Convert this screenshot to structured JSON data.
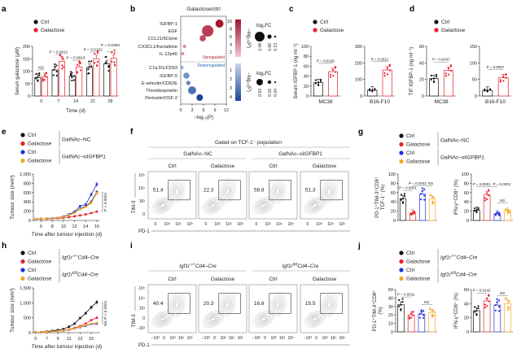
{
  "panel_labels": [
    "a",
    "b",
    "c",
    "d",
    "e",
    "f",
    "g",
    "h",
    "i",
    "j"
  ],
  "legends": {
    "two": {
      "entries": [
        {
          "label": "Ctrl",
          "color": "#111111"
        },
        {
          "label": "Galactose",
          "color": "#e8202a"
        }
      ]
    },
    "galnac": {
      "entries": [
        {
          "label": "Ctrl",
          "color": "#111111"
        },
        {
          "label": "Galactose",
          "color": "#e8202a"
        },
        {
          "label": "Ctrl",
          "color": "#1f2fe0"
        },
        {
          "label": "Galactose",
          "color": "#f5a623"
        }
      ],
      "groups": [
        {
          "text": "GalNAc–NC"
        },
        {
          "text": "GalNAc–siIGFBP1"
        }
      ]
    },
    "igf1r": {
      "entries": [
        {
          "label": "Ctrl",
          "color": "#111111"
        },
        {
          "label": "Galactose",
          "color": "#e8202a"
        },
        {
          "label": "Ctrl",
          "color": "#1f2fe0"
        },
        {
          "label": "Galactose",
          "color": "#f5a623"
        }
      ],
      "groups": [
        {
          "gene": "Igf1r",
          "sup": "+/+",
          "rest": "Cd4–Cre"
        },
        {
          "gene": "Igf1r",
          "sup": "fl/fl",
          "rest": "Cd4–Cre"
        }
      ]
    }
  },
  "chart_data": [
    {
      "panel": "a",
      "type": "bar",
      "ylabel": "Serum galactose (µM)",
      "xlabel": "Time (d)",
      "ylim": [
        0,
        200
      ],
      "yticks": [
        0,
        50,
        100,
        150,
        200
      ],
      "categories": [
        "0",
        "7",
        "14",
        "21",
        "28"
      ],
      "series": [
        {
          "name": "Ctrl",
          "color": "#111111",
          "values": [
            75,
            105,
            80,
            115,
            130
          ]
        },
        {
          "name": "Galactose",
          "color": "#e8202a",
          "values": [
            78,
            140,
            117,
            150,
            152
          ]
        }
      ],
      "comparisons": [
        "NS",
        "P = 0.0011",
        "P = 0.0015",
        "P = 0.0152",
        "P = 0.0363"
      ]
    },
    {
      "panel": "b",
      "type": "scatter",
      "title": "Galactose/ctrl",
      "xlabel": "−log₁₀(P)",
      "xlim": [
        0,
        12
      ],
      "xticks": [
        0,
        3,
        6,
        9,
        12
      ],
      "upregulated": {
        "label": "Upregulated",
        "color": "#b5203a",
        "items": [
          {
            "name": "IGFBP-1",
            "neg_log10_p": 10.2,
            "log2fc": 1.5
          },
          {
            "name": "EGF",
            "neg_log10_p": 7.1,
            "log2fc": 3.48
          },
          {
            "name": "CCL21/6Ckine",
            "neg_log10_p": 5.8,
            "log2fc": 0.8
          },
          {
            "name": "CX3CL1/fractalkine",
            "neg_log10_p": 1.0,
            "log2fc": 0.13
          },
          {
            "name": "IL-12p40",
            "neg_log10_p": 0.5,
            "log2fc": 0.13
          }
        ]
      },
      "downregulated": {
        "label": "Downregulated",
        "color": "#2b64b0",
        "items": [
          {
            "name": "C1q R1/CD93",
            "neg_log10_p": 0.3,
            "log2fc": 0.04
          },
          {
            "name": "IGFBP-5",
            "neg_log10_p": 1.5,
            "log2fc": 0.3
          },
          {
            "name": "E-selectin/CD62E",
            "neg_log10_p": 2.0,
            "log2fc": 0.1
          },
          {
            "name": "Thrombopoietin",
            "neg_log10_p": 3.0,
            "log2fc": 0.63
          },
          {
            "name": "Periostin/OSF-2",
            "neg_log10_p": 5.0,
            "log2fc": 0.35
          }
        ]
      },
      "colorbar_up": {
        "label": "−log₁₀(P)",
        "ticks": [
          10,
          8,
          6,
          4,
          2
        ]
      },
      "colorbar_down": {
        "label": "−log₁₀(P)",
        "ticks": [
          1,
          2,
          3,
          4
        ]
      },
      "size_legend_up": {
        "label": "log₂FC",
        "values": [
          3.48,
          0.66,
          0.13
        ]
      },
      "size_legend_down": {
        "label": "log₂FC",
        "values": [
          0.63,
          0.16,
          0.04
        ]
      }
    },
    {
      "panel": "c",
      "type": "bar",
      "ylabel": "Serum IGFBP-1 (ng ml⁻¹)",
      "xlabel": "MC38",
      "ylim": [
        0,
        100
      ],
      "yticks": [
        0,
        20,
        40,
        60,
        80,
        100
      ],
      "values": [
        27,
        49
      ],
      "colors": [
        "#111111",
        "#e8202a"
      ],
      "comparisons": [
        {
          "label": "P = 0.0166",
          "between": [
            0,
            1
          ]
        }
      ]
    },
    {
      "panel": "c",
      "type": "bar",
      "xlabel": "B16-F10",
      "ylim": [
        0,
        300
      ],
      "yticks": [
        0,
        100,
        200,
        300
      ],
      "values": [
        35,
        157
      ],
      "colors": [
        "#111111",
        "#e8202a"
      ],
      "comparisons": [
        {
          "label": "P = 0.0012",
          "between": [
            0,
            1
          ]
        }
      ]
    },
    {
      "panel": "d",
      "type": "bar",
      "ylabel": "TIF IGFBP-1 (ng ml⁻¹)",
      "xlabel": "MC38",
      "ylim": [
        0,
        60
      ],
      "yticks": [
        0,
        20,
        40,
        60
      ],
      "values": [
        21,
        31
      ],
      "colors": [
        "#111111",
        "#e8202a"
      ],
      "comparisons": [
        {
          "label": "P = 0.0247",
          "between": [
            0,
            1
          ]
        }
      ]
    },
    {
      "panel": "d",
      "type": "bar",
      "xlabel": "B16-F10",
      "ylim": [
        0,
        150
      ],
      "yticks": [
        0,
        50,
        100,
        150
      ],
      "values": [
        17,
        55
      ],
      "colors": [
        "#111111",
        "#e8202a"
      ],
      "comparisons": [
        {
          "label": "P = 0.0057",
          "between": [
            0,
            1
          ]
        }
      ]
    },
    {
      "panel": "e",
      "type": "line",
      "ylabel": "Tumour size (mm³)",
      "xlabel": "Time after tumour injection (d)",
      "xlim": [
        4.6,
        16.6
      ],
      "xticks": [
        6,
        8,
        10,
        12,
        14,
        16
      ],
      "ylim": [
        0,
        1000
      ],
      "yticks": [
        0,
        200,
        400,
        600,
        800,
        1000
      ],
      "ytick_labels": [
        "0",
        "200",
        "400",
        "600",
        "800",
        "1,000"
      ],
      "x": [
        5,
        6,
        7,
        8,
        9,
        10,
        11,
        12,
        13,
        14,
        15,
        16
      ],
      "series": [
        {
          "name": "Ctrl",
          "color": "#111111",
          "values": [
            30,
            35,
            40,
            45,
            55,
            80,
            120,
            170,
            250,
            300,
            400,
            610
          ]
        },
        {
          "name": "Galactose",
          "color": "#e8202a",
          "values": [
            30,
            32,
            35,
            38,
            45,
            55,
            70,
            90,
            110,
            130,
            160,
            190
          ]
        },
        {
          "name": "Ctrl",
          "color": "#1f2fe0",
          "values": [
            30,
            35,
            40,
            45,
            55,
            85,
            130,
            190,
            310,
            340,
            560,
            780
          ]
        },
        {
          "name": "Galactose",
          "color": "#f5a623",
          "values": [
            30,
            34,
            38,
            42,
            52,
            78,
            115,
            165,
            240,
            290,
            380,
            590
          ]
        }
      ],
      "annotations": [
        {
          "label": "P < 0.0001",
          "between": [
            1,
            0
          ]
        }
      ]
    },
    {
      "panel": "f",
      "type": "flow",
      "header": "Gated on TCF-1⁻ population",
      "groups": [
        "GalNAc–NC",
        "GalNAc–siIGFBP1"
      ],
      "conditions": [
        "Ctrl",
        "Galactose",
        "Ctrl",
        "Galactose"
      ],
      "percentages": [
        "51.4",
        "22.3",
        "58.8",
        "51.3"
      ],
      "ylabel": "TIM-3",
      "xlabel": "PD-1",
      "xticks": [
        "0",
        "10³",
        "10⁴",
        "10⁵"
      ],
      "yticks": [
        "10⁵",
        "10⁴",
        "10³",
        "0"
      ]
    },
    {
      "panel": "g",
      "type": "bar",
      "ylabel": "PD-1⁺TIM-3⁺CD8⁺",
      "ylabel2": "TCF-1⁻ (%)",
      "ylim": [
        0,
        100
      ],
      "yticks": [
        0,
        20,
        40,
        60,
        80,
        100
      ],
      "values": [
        47,
        16,
        57,
        46
      ],
      "colors": [
        "#111111",
        "#e8202a",
        "#1f2fe0",
        "#f5a623"
      ],
      "comparisons": [
        {
          "label": "P = 0.0001",
          "between": [
            0,
            1
          ]
        },
        {
          "label": "P = 0.0002",
          "between": [
            1,
            2
          ]
        },
        {
          "label": "NS",
          "between": [
            2,
            3
          ]
        }
      ]
    },
    {
      "panel": "g",
      "type": "bar",
      "ylabel": "IFN-γ⁺CD8⁺ (%)",
      "ylim": [
        0,
        100
      ],
      "yticks": [
        0,
        20,
        40,
        60,
        80,
        100
      ],
      "values": [
        22,
        55,
        14,
        20
      ],
      "colors": [
        "#111111",
        "#e8202a",
        "#1f2fe0",
        "#f5a623"
      ],
      "comparisons": [
        {
          "label": "P = 0.0001",
          "between": [
            0,
            1
          ]
        },
        {
          "label": "P = 0.0001",
          "between": [
            1,
            2
          ]
        },
        {
          "label": "NS",
          "between": [
            2,
            3
          ]
        }
      ]
    },
    {
      "panel": "h",
      "type": "line",
      "ylabel": "Tumour size (mm³)",
      "xlabel": "Time after tumour injection (d)",
      "xlim": [
        4.6,
        16.6
      ],
      "xticks": [
        5,
        7,
        9,
        11,
        13,
        15
      ],
      "ylim": [
        0,
        1500
      ],
      "yticks": [
        0,
        500,
        1000,
        1500
      ],
      "ytick_labels": [
        "0",
        "500",
        "1,000",
        "1,500"
      ],
      "x": [
        5,
        6,
        7,
        8,
        9,
        10,
        11,
        12,
        13,
        14,
        15,
        16
      ],
      "series": [
        {
          "name": "Ctrl",
          "color": "#111111",
          "values": [
            10,
            20,
            40,
            60,
            90,
            120,
            200,
            300,
            490,
            650,
            850,
            1020
          ]
        },
        {
          "name": "Galactose",
          "color": "#e8202a",
          "values": [
            10,
            15,
            25,
            40,
            55,
            70,
            110,
            160,
            220,
            300,
            420,
            500
          ]
        },
        {
          "name": "Ctrl",
          "color": "#1f2fe0",
          "values": [
            10,
            15,
            25,
            35,
            50,
            65,
            95,
            140,
            180,
            230,
            290,
            300
          ]
        },
        {
          "name": "Galactose",
          "color": "#f5a623",
          "values": [
            10,
            15,
            25,
            35,
            50,
            70,
            100,
            140,
            190,
            250,
            300,
            330
          ]
        }
      ],
      "annotations": [
        {
          "label": "P < 0.0001",
          "between": [
            1,
            0
          ]
        },
        {
          "label": "NS",
          "between": [
            2,
            1
          ]
        }
      ]
    },
    {
      "panel": "i",
      "type": "flow",
      "groups": [
        {
          "gene": "Igf1r",
          "sup": "+/+",
          "rest": "Cd4–Cre"
        },
        {
          "gene": "Igf1r",
          "sup": "fl/fl",
          "rest": "Cd4–Cre"
        }
      ],
      "conditions": [
        "Ctrl",
        "Galactose",
        "Ctrl",
        "Galactose"
      ],
      "percentages": [
        "40.4",
        "20.3",
        "16.8",
        "15.5"
      ],
      "ylabel": "TIM-3",
      "xlabel": "PD-1",
      "xticks": [
        "−10³",
        "0",
        "10³",
        "10⁴",
        "10⁵"
      ],
      "yticks": [
        "10⁵",
        "10⁴",
        "10³",
        "0",
        "−10³"
      ]
    },
    {
      "panel": "j",
      "type": "bar",
      "ylabel": "PD-1⁺TIM-3⁺CD8⁺",
      "ylabel2": "(%)",
      "ylim": [
        0,
        50
      ],
      "yticks": [
        0,
        10,
        20,
        30,
        40,
        50
      ],
      "values": [
        32,
        20,
        21,
        23
      ],
      "colors": [
        "#111111",
        "#e8202a",
        "#1f2fe0",
        "#f5a623"
      ],
      "comparisons": [
        {
          "label": "P = 0.0011",
          "between": [
            0,
            1
          ]
        },
        {
          "label": "NS",
          "between": [
            2,
            3
          ]
        }
      ]
    },
    {
      "panel": "j",
      "type": "bar",
      "ylabel": "IFN-γ⁺CD8⁺ (%)",
      "ylim": [
        0,
        60
      ],
      "yticks": [
        0,
        20,
        40,
        60
      ],
      "values": [
        30,
        44,
        38,
        40
      ],
      "colors": [
        "#111111",
        "#e8202a",
        "#1f2fe0",
        "#f5a623"
      ],
      "comparisons": [
        {
          "label": "P = 0.0142",
          "between": [
            0,
            1
          ]
        },
        {
          "label": "NS",
          "between": [
            2,
            3
          ]
        }
      ]
    }
  ]
}
